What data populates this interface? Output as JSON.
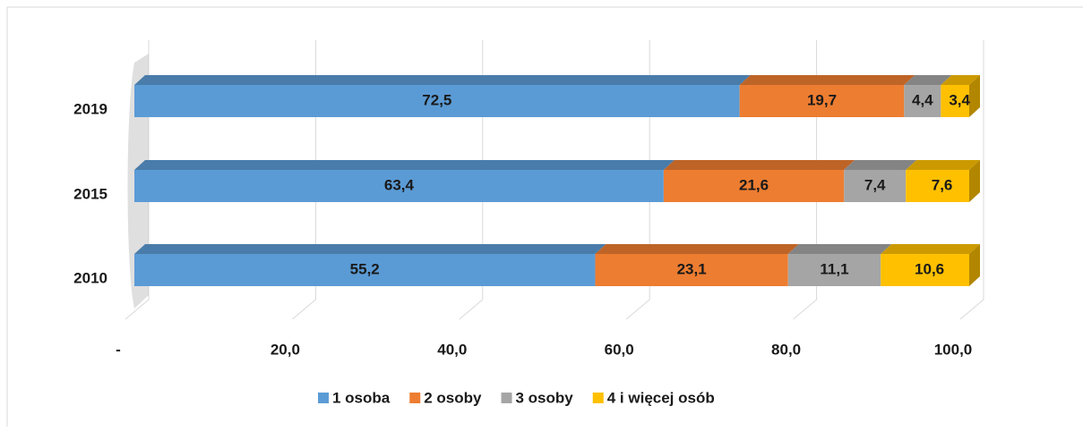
{
  "chart_data": {
    "type": "stacked-bar-horizontal",
    "categories": [
      "2019",
      "2015",
      "2010"
    ],
    "series": [
      {
        "name": "1 osoba",
        "color": "#5b9bd5",
        "values": [
          72.5,
          63.4,
          55.2
        ],
        "value_labels": [
          "72,5",
          "63,4",
          "55,2"
        ]
      },
      {
        "name": "2 osoby",
        "color": "#ed7d31",
        "values": [
          19.7,
          21.6,
          23.1
        ],
        "value_labels": [
          "19,7",
          "21,6",
          "23,1"
        ]
      },
      {
        "name": "3 osoby",
        "color": "#a5a5a5",
        "values": [
          4.4,
          7.4,
          11.1
        ],
        "value_labels": [
          "4,4",
          "7,4",
          "11,1"
        ]
      },
      {
        "name": "4 i więcej osób",
        "color": "#ffc000",
        "values": [
          3.4,
          7.6,
          10.6
        ],
        "value_labels": [
          "3,4",
          "7,6",
          "10,6"
        ]
      }
    ],
    "xlim": [
      0,
      100
    ],
    "xticks": [
      {
        "value": 0,
        "label": "-"
      },
      {
        "value": 20,
        "label": "20,0"
      },
      {
        "value": 40,
        "label": "40,0"
      },
      {
        "value": 60,
        "label": "60,0"
      },
      {
        "value": 80,
        "label": "80,0"
      },
      {
        "value": 100,
        "label": "100,0"
      }
    ],
    "grid": true,
    "legend": "bottom"
  }
}
